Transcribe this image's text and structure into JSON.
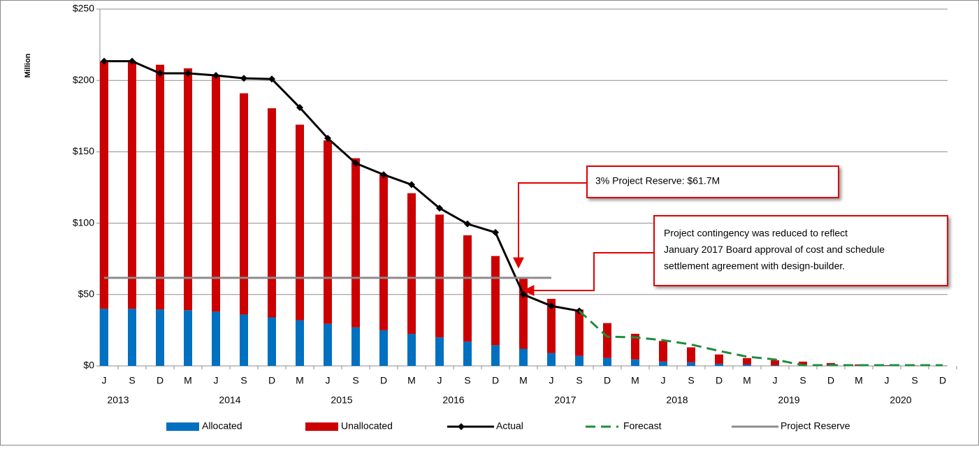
{
  "chart_data": {
    "type": "bar",
    "ylabel": "Million",
    "categories": [
      "J",
      "S",
      "D",
      "M",
      "J",
      "S",
      "D",
      "M",
      "J",
      "S",
      "D",
      "M",
      "J",
      "S",
      "D",
      "M",
      "J",
      "S",
      "D",
      "M",
      "J",
      "S",
      "D",
      "M",
      "J",
      "S",
      "D",
      "M",
      "J",
      "S",
      "D"
    ],
    "groups": [
      {
        "label": "2013",
        "size": 3
      },
      {
        "label": "2014",
        "size": 4
      },
      {
        "label": "2015",
        "size": 4
      },
      {
        "label": "2016",
        "size": 4
      },
      {
        "label": "2017",
        "size": 4
      },
      {
        "label": "2018",
        "size": 4
      },
      {
        "label": "2019",
        "size": 4
      },
      {
        "label": "2020",
        "size": 4
      }
    ],
    "ylim": [
      0,
      250
    ],
    "yticks": [
      {
        "value": 0,
        "label": "$0"
      },
      {
        "value": 50,
        "label": "$50"
      },
      {
        "value": 100,
        "label": "$100"
      },
      {
        "value": 150,
        "label": "$150"
      },
      {
        "value": 200,
        "label": "$200"
      },
      {
        "value": 250,
        "label": "$250"
      }
    ],
    "grid": true,
    "series": [
      {
        "name": "Allocated",
        "kind": "bar",
        "color": "#0070c0",
        "values": [
          40,
          40,
          39.5,
          39,
          38,
          36,
          34,
          32,
          29.5,
          27,
          25,
          22.5,
          20,
          17,
          14.5,
          12,
          9,
          7,
          5.5,
          4.5,
          3,
          2.5,
          1.5,
          1,
          0.5,
          0.5,
          0.5,
          0.3,
          0.2,
          0.1,
          0.1
        ]
      },
      {
        "name": "Unallocated",
        "kind": "bar",
        "color": "#cc0000",
        "values": [
          173.5,
          173.5,
          171.5,
          169.5,
          165,
          155,
          146.5,
          137,
          128.5,
          118.5,
          109,
          98.5,
          86,
          74.5,
          62.5,
          49,
          38,
          32.5,
          24.5,
          18,
          14.5,
          10.5,
          6.5,
          4.5,
          3.5,
          2.5,
          1.5,
          0.7,
          0.3,
          0.2,
          0.1
        ]
      },
      {
        "name": "Actual",
        "kind": "line",
        "color": "#000000",
        "values": [
          213.5,
          213.5,
          205,
          205,
          203.5,
          201.5,
          201,
          181,
          159.5,
          142,
          134,
          127,
          110.5,
          99.5,
          93.5,
          50,
          42,
          38.5,
          null,
          null,
          null,
          null,
          null,
          null,
          null,
          null,
          null,
          null,
          null,
          null,
          null
        ]
      },
      {
        "name": "Forecast",
        "kind": "dashed",
        "color": "#1e8c3c",
        "values": [
          null,
          null,
          null,
          null,
          null,
          null,
          null,
          null,
          null,
          null,
          null,
          null,
          null,
          null,
          null,
          null,
          null,
          38.5,
          20.5,
          20,
          18,
          15,
          10.5,
          6.5,
          4.5,
          0.5,
          0.5,
          0.5,
          0.5,
          0.5,
          0.5
        ]
      },
      {
        "name": "Project Reserve",
        "kind": "reserve",
        "color": "#8c8c8c",
        "values": [
          61.7,
          61.7,
          61.7,
          61.7,
          61.7,
          61.7,
          61.7,
          61.7,
          61.7,
          61.7,
          61.7,
          61.7,
          61.7,
          61.7,
          61.7,
          61.7,
          61.7,
          null,
          null,
          null,
          null,
          null,
          null,
          null,
          null,
          null,
          null,
          null,
          null,
          null,
          null
        ]
      }
    ],
    "annotations": [
      {
        "lines": [
          "3% Project Reserve:  $61.7M"
        ]
      },
      {
        "lines": [
          "Project contingency was  reduced to reflect",
          "January 2017 Board approval of  cost and schedule",
          "settlement agreement with design-builder."
        ]
      }
    ]
  }
}
